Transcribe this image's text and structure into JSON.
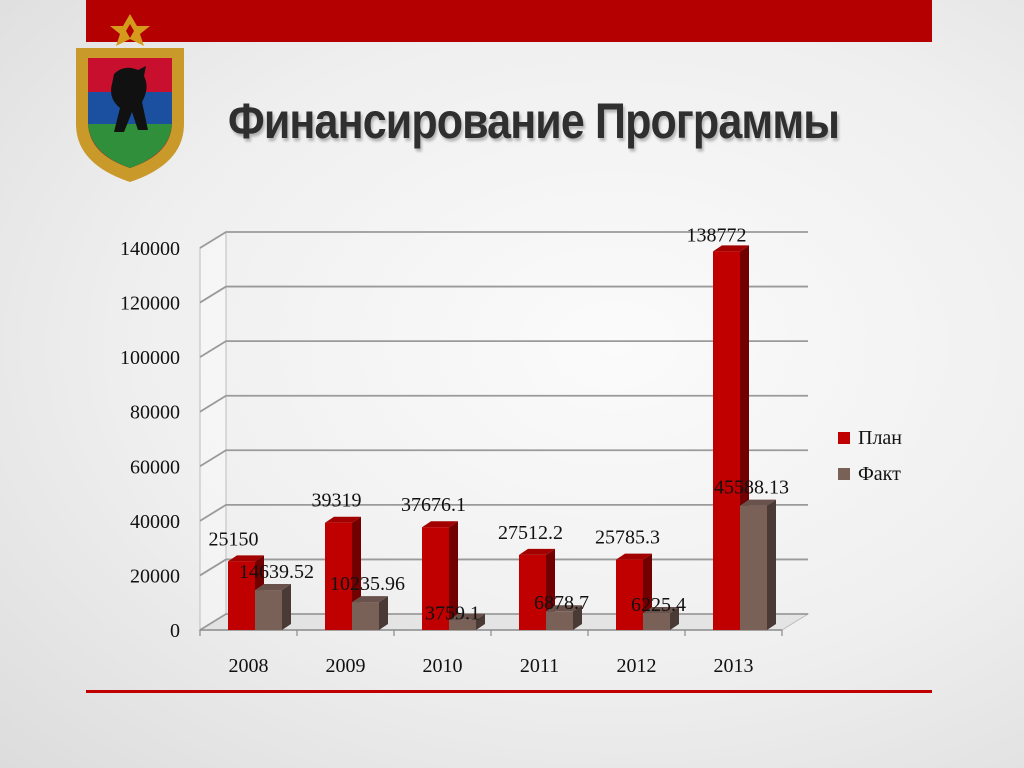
{
  "title": "Финансирование Программы",
  "colors": {
    "plan": "#c00000",
    "fact": "#7a6158",
    "band": "#b40000"
  },
  "chart_data": {
    "type": "bar",
    "categories": [
      "2008",
      "2009",
      "2010",
      "2011",
      "2012",
      "2013"
    ],
    "series": [
      {
        "name": "План",
        "values": [
          25150,
          39319,
          37676.1,
          27512.2,
          25785.3,
          138772
        ],
        "labels": [
          "25150",
          "39319",
          "37676.1",
          "27512.2",
          "25785.3",
          "138772"
        ]
      },
      {
        "name": "Факт",
        "values": [
          14639.52,
          10235.96,
          3759.1,
          6878.7,
          6225.4,
          45588.13
        ],
        "labels": [
          "14639.52",
          "10235.96",
          "3759.1",
          "6878.7",
          "6225.4",
          "45588.13"
        ]
      }
    ],
    "yticks": [
      "0",
      "20000",
      "40000",
      "60000",
      "80000",
      "100000",
      "120000",
      "140000"
    ],
    "ylim": [
      0,
      140000
    ],
    "grid": true,
    "legend": "right"
  }
}
